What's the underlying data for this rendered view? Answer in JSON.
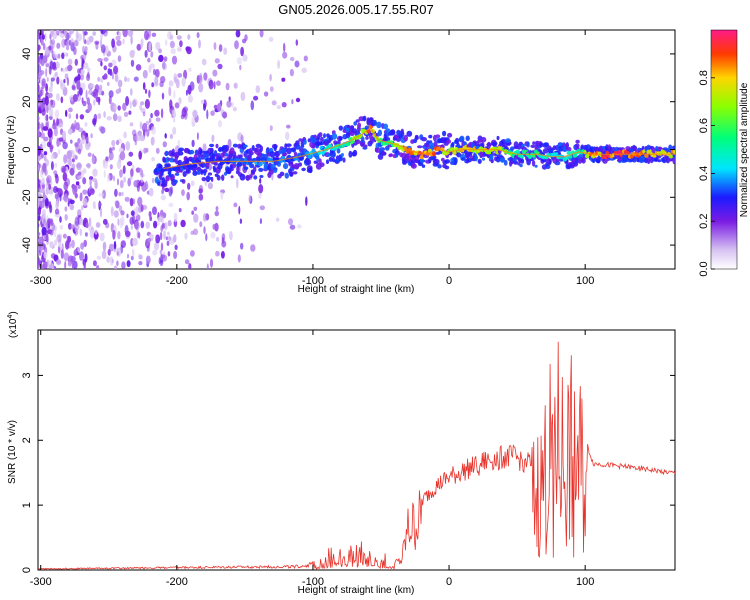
{
  "title": "GN05.2026.005.17.55.R07",
  "chart_data": [
    {
      "type": "heatmap",
      "xlabel": "Height of straight line (km)",
      "ylabel": "Frequency (Hz)",
      "xlim": [
        -302,
        166
      ],
      "ylim": [
        -50,
        50
      ],
      "x_ticks": [
        -300,
        -200,
        -100,
        0,
        100
      ],
      "y_ticks": [
        -40,
        -20,
        0,
        20,
        40
      ],
      "colorbar": {
        "label": "Normalized spectral amplitude",
        "range": [
          0,
          1
        ],
        "ticks": [
          "0.0",
          "0.2",
          "0.4",
          "0.6",
          "0.8"
        ]
      },
      "ridge": {
        "x": [
          -210,
          -190,
          -170,
          -150,
          -130,
          -110,
          -90,
          -75,
          -65,
          -58,
          -52,
          -45,
          -38,
          -30,
          -20,
          -12,
          -6,
          0,
          10,
          20,
          35,
          50,
          65,
          75,
          85,
          95,
          105,
          120,
          140,
          166
        ],
        "freq": [
          -8,
          -6,
          -5,
          -5,
          -5,
          -3,
          0,
          3,
          6,
          9,
          4,
          3,
          2,
          0,
          -2,
          -1,
          0,
          -1,
          0,
          0,
          0,
          -2,
          -2,
          -3,
          -3,
          -1,
          -2,
          -2,
          -2,
          -2
        ],
        "amplitude": [
          0.3,
          0.3,
          0.3,
          0.35,
          0.35,
          0.35,
          0.45,
          0.55,
          0.7,
          0.9,
          0.65,
          0.55,
          0.75,
          0.9,
          0.85,
          0.9,
          0.8,
          0.75,
          0.8,
          0.75,
          0.75,
          0.55,
          0.55,
          0.45,
          0.45,
          0.5,
          0.85,
          0.9,
          0.85,
          0.8
        ]
      }
    },
    {
      "type": "line",
      "xlabel": "Height of straight line (km)",
      "ylabel": "SNR (10 * v/v)",
      "y_multiplier": "(x10",
      "y_multiplier_exp": "4",
      "y_multiplier_close": ")",
      "xlim": [
        -302,
        166
      ],
      "ylim": [
        0,
        3.7
      ],
      "x_ticks": [
        -300,
        -200,
        -100,
        0,
        100
      ],
      "y_ticks": [
        0,
        1,
        2,
        3
      ],
      "color": "#e8332b",
      "envelope": {
        "x": [
          -302,
          -200,
          -150,
          -110,
          -100,
          -85,
          -70,
          -62,
          -55,
          -50,
          -42,
          -35,
          -30,
          -25,
          -20,
          -10,
          0,
          20,
          30,
          45,
          60,
          68,
          73,
          78,
          85,
          92,
          98,
          102,
          106,
          130,
          166
        ],
        "y": [
          0.02,
          0.04,
          0.05,
          0.06,
          0.1,
          0.35,
          0.5,
          0.45,
          0.38,
          0.25,
          0.12,
          0.2,
          0.9,
          1.0,
          1.15,
          1.4,
          1.55,
          1.75,
          1.85,
          1.9,
          1.8,
          2.2,
          2.8,
          3.5,
          2.8,
          3.2,
          2.5,
          1.9,
          1.65,
          1.6,
          1.5
        ]
      }
    }
  ]
}
